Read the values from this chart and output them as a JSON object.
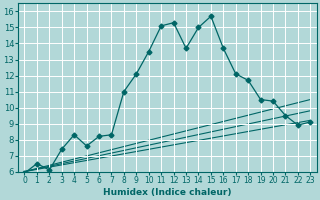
{
  "xlabel": "Humidex (Indice chaleur)",
  "background_color": "#b2d8d8",
  "grid_color": "#ffffff",
  "line_color": "#006666",
  "xlim": [
    -0.5,
    23.5
  ],
  "ylim": [
    6,
    16.5
  ],
  "xticks": [
    0,
    1,
    2,
    3,
    4,
    5,
    6,
    7,
    8,
    9,
    10,
    11,
    12,
    13,
    14,
    15,
    16,
    17,
    18,
    19,
    20,
    21,
    22,
    23
  ],
  "yticks": [
    6,
    7,
    8,
    9,
    10,
    11,
    12,
    13,
    14,
    15,
    16
  ],
  "series_main": {
    "x": [
      0,
      1,
      2,
      3,
      4,
      5,
      6,
      7,
      8,
      9,
      10,
      11,
      12,
      13,
      14,
      15,
      16,
      17,
      18,
      19,
      20,
      21,
      22,
      23
    ],
    "y": [
      5.9,
      6.5,
      6.1,
      7.4,
      8.3,
      7.6,
      8.2,
      8.3,
      11.0,
      12.1,
      13.5,
      15.1,
      15.3,
      13.7,
      15.0,
      15.7,
      13.7,
      12.1,
      11.7,
      10.5,
      10.4,
      9.5,
      8.9,
      9.1
    ]
  },
  "series_linear": [
    {
      "x": [
        0,
        23
      ],
      "y": [
        6.0,
        10.5
      ]
    },
    {
      "x": [
        0,
        23
      ],
      "y": [
        6.0,
        9.8
      ]
    },
    {
      "x": [
        0,
        23
      ],
      "y": [
        6.0,
        9.2
      ]
    }
  ]
}
